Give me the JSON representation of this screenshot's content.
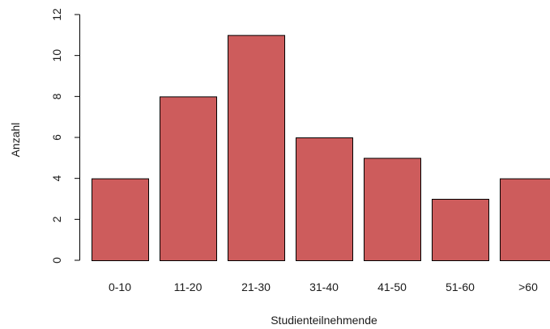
{
  "chart_data": {
    "type": "bar",
    "title": "",
    "xlabel": "Studienteilnehmende",
    "ylabel": "Anzahl",
    "categories": [
      "0-10",
      "11-20",
      "21-30",
      "31-40",
      "41-50",
      "51-60",
      ">60"
    ],
    "values": [
      4,
      8,
      11,
      6,
      5,
      3,
      4
    ],
    "ylim": [
      0,
      12
    ],
    "yticks": [
      "0",
      "2",
      "4",
      "6",
      "8",
      "10",
      "12"
    ],
    "grid": false,
    "legend": "none",
    "colors": {
      "bar_fill": "#cd5c5c",
      "bar_stroke": "#000000",
      "axis": "#000000"
    }
  }
}
